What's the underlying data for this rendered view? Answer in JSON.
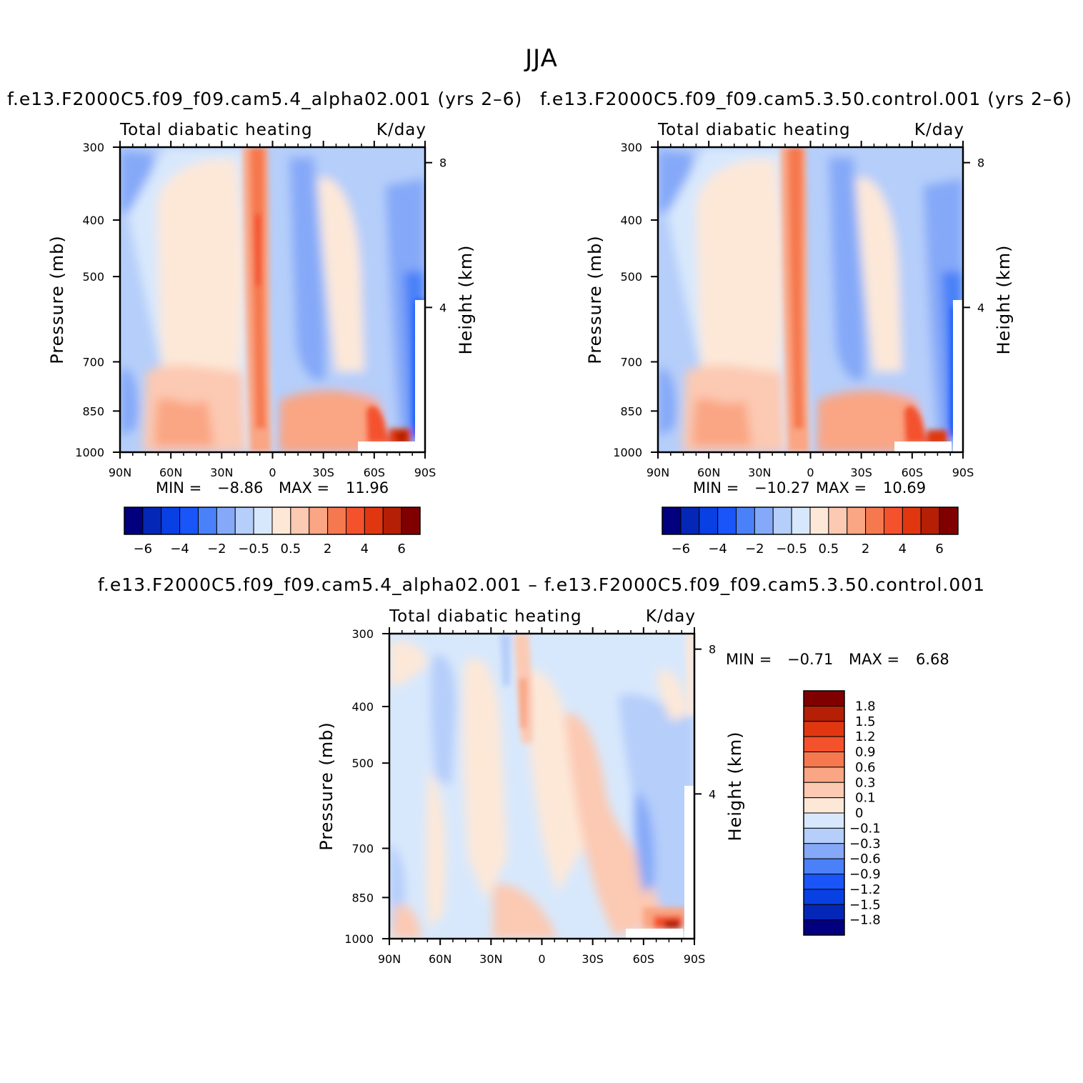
{
  "figure": {
    "title": "JJA",
    "variable_label": "Total diabatic heating",
    "units_label": "K/day",
    "diff_title": "f.e13.F2000C5.f09_f09.cam5.4_alpha02.001  –  f.e13.F2000C5.f09_f09.cam5.3.50.control.001",
    "panels": [
      {
        "title": "f.e13.F2000C5.f09_f09.cam5.4_alpha02.001  (yrs  2–6)",
        "min_label": "MIN  =",
        "min": "−8.86",
        "max_label": "MAX  =",
        "max": "11.96"
      },
      {
        "title": "f.e13.F2000C5.f09_f09.cam5.3.50.control.001  (yrs  2–6)",
        "min_label": "MIN  =",
        "min": "−10.27",
        "max_label": "MAX  =",
        "max": "10.69"
      },
      {
        "min_label": "MIN  =",
        "min": "−0.71",
        "max_label": "MAX  =",
        "max": "6.68"
      }
    ]
  },
  "chart_data": [
    {
      "type": "heatmap",
      "title": "Total diabatic heating",
      "units": "K/day",
      "xlabel": "",
      "ylabel": "Pressure  (mb)",
      "y2label": "Height  (km)",
      "x_tick_labels": [
        "90N",
        "60N",
        "30N",
        "0",
        "30S",
        "60S",
        "90S"
      ],
      "x_ticks": [
        90,
        60,
        30,
        0,
        -30,
        -60,
        -90
      ],
      "y_tick_labels": [
        "300",
        "400",
        "500",
        "700",
        "850",
        "1000"
      ],
      "y_ticks": [
        300,
        400,
        500,
        700,
        850,
        1000
      ],
      "y2_tick_labels": [
        "8",
        "4"
      ],
      "colorbar_labels": [
        "−6",
        "−4",
        "−2",
        "−0.5",
        "0.5",
        "2",
        "4",
        "6"
      ],
      "colorbar_colors": [
        "#02007e",
        "#0527b7",
        "#0940e4",
        "#1955f8",
        "#4a80f8",
        "#85a9f8",
        "#b5cefa",
        "#d8e8fc",
        "#fde8d8",
        "#fcc9b2",
        "#faa583",
        "#f6784e",
        "#f4512d",
        "#e03711",
        "#b41f06",
        "#800000"
      ],
      "min": -8.86,
      "max": 11.96
    },
    {
      "type": "heatmap",
      "title": "Total diabatic heating",
      "units": "K/day",
      "xlabel": "",
      "ylabel": "Pressure  (mb)",
      "y2label": "Height  (km)",
      "x_tick_labels": [
        "90N",
        "60N",
        "30N",
        "0",
        "30S",
        "60S",
        "90S"
      ],
      "y_tick_labels": [
        "300",
        "400",
        "500",
        "700",
        "850",
        "1000"
      ],
      "y2_tick_labels": [
        "8",
        "4"
      ],
      "colorbar_labels": [
        "−6",
        "−4",
        "−2",
        "−0.5",
        "0.5",
        "2",
        "4",
        "6"
      ],
      "min": -10.27,
      "max": 10.69
    },
    {
      "type": "heatmap",
      "title": "Total diabatic heating",
      "units": "K/day",
      "xlabel": "",
      "ylabel": "Pressure  (mb)",
      "y2label": "Height  (km)",
      "x_tick_labels": [
        "90N",
        "60N",
        "30N",
        "0",
        "30S",
        "60S",
        "90S"
      ],
      "y_tick_labels": [
        "300",
        "400",
        "500",
        "700",
        "850",
        "1000"
      ],
      "y2_tick_labels": [
        "8",
        "4"
      ],
      "colorbar_labels": [
        "1.8",
        "1.5",
        "1.2",
        "0.9",
        "0.6",
        "0.3",
        "0.1",
        "0",
        "−0.1",
        "−0.3",
        "−0.6",
        "−0.9",
        "−1.2",
        "−1.5",
        "−1.8"
      ],
      "colorbar_colors": [
        "#800000",
        "#b41f06",
        "#e03711",
        "#f4512d",
        "#f6784e",
        "#faa583",
        "#fcc9b2",
        "#fde8d8",
        "#d8e8fc",
        "#b5cefa",
        "#85a9f8",
        "#4a80f8",
        "#1955f8",
        "#0940e4",
        "#0527b7",
        "#02007e"
      ],
      "min": -0.71,
      "max": 6.68
    }
  ]
}
